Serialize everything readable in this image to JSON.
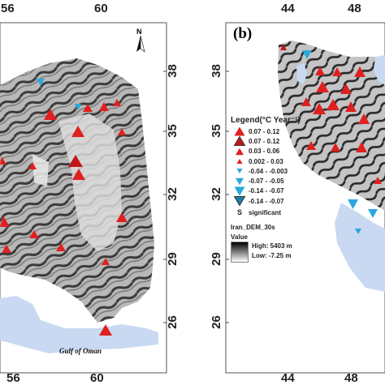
{
  "panel_a": {
    "x_ticks": [
      "56",
      "60"
    ],
    "y_ticks": [
      "38",
      "35",
      "32",
      "29",
      "26"
    ],
    "x_ticks_bottom": [
      "56",
      "60"
    ],
    "north_label": "N",
    "sea_label": "Gulf of Oman"
  },
  "panel_b": {
    "label": "(b)",
    "x_ticks": [
      "44",
      "48"
    ],
    "y_ticks": [
      "38",
      "35",
      "32",
      "29",
      "26"
    ],
    "x_ticks_bottom": [
      "44",
      "48"
    ]
  },
  "legend": {
    "title": "Legend(°C Year⁻¹)",
    "items": [
      {
        "label": "0.07 - 0.12",
        "symbol": "triangle-up",
        "color": "#e02020",
        "size": "large"
      },
      {
        "label": "0.07 - 0.12",
        "symbol": "triangle-up",
        "color": "#c01818",
        "size": "large-dark"
      },
      {
        "label": "0.03 - 0.06",
        "symbol": "triangle-up",
        "color": "#e02020",
        "size": "medium"
      },
      {
        "label": "0.002 - 0.03",
        "symbol": "triangle-up",
        "color": "#e02020",
        "size": "small"
      },
      {
        "label": "-0.04 - -0.003",
        "symbol": "triangle-down",
        "color": "#2aa7dc",
        "size": "small"
      },
      {
        "label": "-0.07 - -0.05",
        "symbol": "triangle-down",
        "color": "#2aa7dc",
        "size": "medium"
      },
      {
        "label": "-0.14 - -0.07",
        "symbol": "triangle-down",
        "color": "#2aa7dc",
        "size": "large"
      },
      {
        "label": "-0.14 - -0.07",
        "symbol": "triangle-down",
        "color": "#1b7fa8",
        "size": "large-dark"
      }
    ],
    "significant_symbol": "S",
    "significant_label": "significant",
    "dem_title": "Iran_DEM_30s",
    "dem_value_label": "Value",
    "dem_high": "High: 5403 m",
    "dem_low": "Low: -7.25 m"
  },
  "colors": {
    "increase": "#e02020",
    "decrease": "#2aa7dc",
    "water": "#c9d9f2",
    "terrain_dark": "#222222",
    "terrain_light": "#f2f2f2"
  }
}
